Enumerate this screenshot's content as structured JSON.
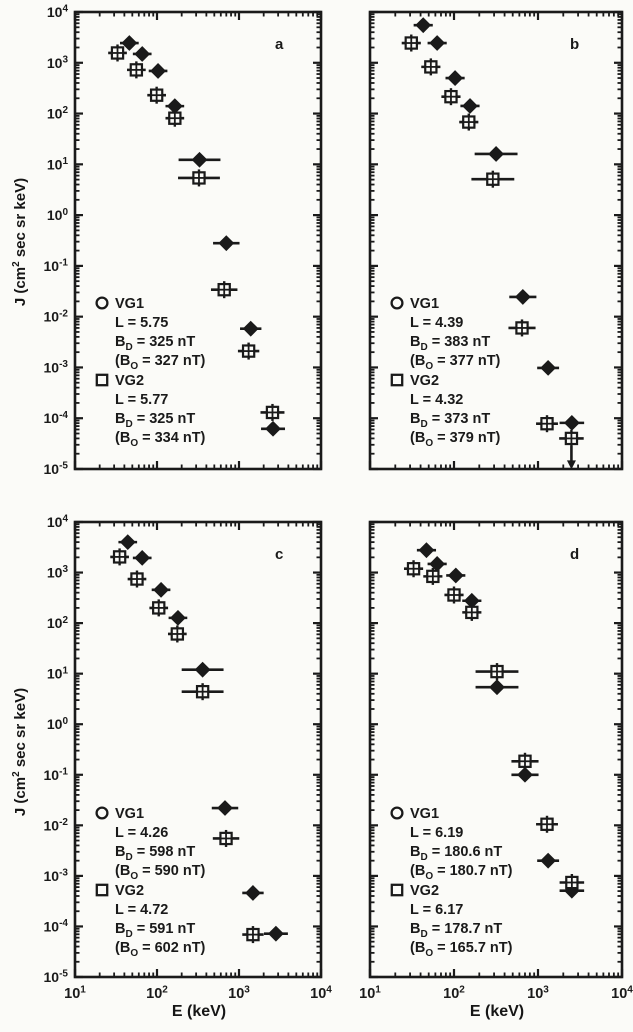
{
  "figure": {
    "xlabel": "E (keV)",
    "ylabel": "J (cm^2 sec sr keV)",
    "x_ticks": [
      "10^1",
      "10^2",
      "10^3",
      "10^4"
    ],
    "y_ticks": [
      "10^4",
      "10^3",
      "10^2",
      "10^1",
      "10^0",
      "10^-1",
      "10^-2",
      "10^-3",
      "10^-4",
      "10^-5"
    ],
    "ink_color": "#1a1a1a",
    "bg_color": "#fbfbf8"
  },
  "chart_data": [
    {
      "type": "scatter",
      "panel_label": "a",
      "xlabel": "E (keV)",
      "ylabel": "J (cm^2 sec sr keV)",
      "xlim_log10": [
        1,
        4
      ],
      "ylim_log10": [
        -5,
        4
      ],
      "grid": false,
      "legend": {
        "vg1": {
          "symbol": "circle",
          "label": "VG1",
          "lines": [
            "L = 5.75",
            "B_D = 325 nT",
            "(B_O = 327 nT)"
          ]
        },
        "vg2": {
          "symbol": "square",
          "label": "VG2",
          "lines": [
            "L = 5.77",
            "B_D = 325 nT",
            "(B_O = 334 nT)"
          ]
        }
      },
      "series": [
        {
          "name": "VG1",
          "marker": "filled-diamond",
          "points_E_J_Eerr": [
            [
              46,
              2450,
              1.3
            ],
            [
              66,
              1490,
              1.3
            ],
            [
              103,
              690,
              1.3
            ],
            [
              165,
              140,
              1.3
            ],
            [
              330,
              12.3,
              1.8
            ],
            [
              700,
              0.28,
              1.45
            ],
            [
              1390,
              0.0058,
              1.35
            ],
            [
              2600,
              6.2e-05,
              1.4
            ]
          ]
        },
        {
          "name": "VG2",
          "marker": "crossed-square",
          "points_E_J_Eerr": [
            [
              33,
              1560,
              1.3
            ],
            [
              56,
              725,
              1.3
            ],
            [
              99,
              230,
              1.3
            ],
            [
              165,
              81,
              1.3
            ],
            [
              325,
              5.4,
              1.8
            ],
            [
              660,
              0.034,
              1.45
            ],
            [
              1310,
              0.0021,
              1.35
            ],
            [
              2560,
              0.00013,
              1.4
            ]
          ]
        }
      ]
    },
    {
      "type": "scatter",
      "panel_label": "b",
      "xlabel": "E (keV)",
      "ylabel": "J (cm^2 sec sr keV)",
      "xlim_log10": [
        1,
        4
      ],
      "ylim_log10": [
        -5,
        4
      ],
      "grid": false,
      "legend": {
        "vg1": {
          "symbol": "circle",
          "label": "VG1",
          "lines": [
            "L = 4.39",
            "B_D = 383 nT",
            "(B_O = 377 nT)"
          ]
        },
        "vg2": {
          "symbol": "square",
          "label": "VG2",
          "lines": [
            "L = 4.32",
            "B_D = 373 nT",
            "(B_O = 379 nT)"
          ]
        }
      },
      "series": [
        {
          "name": "VG1",
          "marker": "filled-diamond",
          "points_E_J_Eerr": [
            [
              43,
              5500,
              1.3
            ],
            [
              63,
              2450,
              1.3
            ],
            [
              103,
              500,
              1.3
            ],
            [
              155,
              141,
              1.3
            ],
            [
              317,
              16,
              1.8
            ],
            [
              660,
              0.0245,
              1.45
            ],
            [
              1320,
              0.00098,
              1.35
            ],
            [
              2530,
              8.1e-05,
              1.4
            ]
          ]
        },
        {
          "name": "VG2",
          "marker": "crossed-square",
          "points_E_J_Eerr": [
            [
              31,
              2450,
              1.3
            ],
            [
              53,
              830,
              1.3
            ],
            [
              92,
              215,
              1.3
            ],
            [
              150,
              68,
              1.3
            ],
            [
              290,
              5.1,
              1.8
            ],
            [
              645,
              0.006,
              1.45
            ],
            [
              1280,
              7.8e-05,
              1.35
            ],
            [
              2500,
              4e-05,
              1.4,
              "upper-limit"
            ]
          ]
        }
      ]
    },
    {
      "type": "scatter",
      "panel_label": "c",
      "xlabel": "E (keV)",
      "ylabel": "J (cm^2 sec sr keV)",
      "xlim_log10": [
        1,
        4
      ],
      "ylim_log10": [
        -5,
        4
      ],
      "grid": false,
      "legend": {
        "vg1": {
          "symbol": "circle",
          "label": "VG1",
          "lines": [
            "L = 4.26",
            "B_D = 598 nT",
            "(B_O = 590 nT)"
          ]
        },
        "vg2": {
          "symbol": "square",
          "label": "VG2",
          "lines": [
            "L = 4.72",
            "B_D = 591 nT",
            "(B_O = 602 nT)"
          ]
        }
      },
      "series": [
        {
          "name": "VG1",
          "marker": "filled-diamond",
          "points_E_J_Eerr": [
            [
              44,
              4000,
              1.3
            ],
            [
              66,
              1950,
              1.3
            ],
            [
              112,
              455,
              1.3
            ],
            [
              180,
              127,
              1.3
            ],
            [
              360,
              12,
              1.8
            ],
            [
              675,
              0.022,
              1.45
            ],
            [
              1480,
              0.00046,
              1.35
            ],
            [
              2820,
              7.2e-05,
              1.4
            ]
          ]
        },
        {
          "name": "VG2",
          "marker": "crossed-square",
          "points_E_J_Eerr": [
            [
              35,
              2040,
              1.3
            ],
            [
              57,
              745,
              1.3
            ],
            [
              105,
              200,
              1.3
            ],
            [
              177,
              61,
              1.3
            ],
            [
              360,
              4.4,
              1.8
            ],
            [
              695,
              0.0055,
              1.45
            ],
            [
              1480,
              6.9e-05,
              1.35
            ]
          ]
        }
      ]
    },
    {
      "type": "scatter",
      "panel_label": "d",
      "xlabel": "E (keV)",
      "ylabel": "J (cm^2 sec sr keV)",
      "xlim_log10": [
        1,
        4
      ],
      "ylim_log10": [
        -5,
        4
      ],
      "grid": false,
      "legend": {
        "vg1": {
          "symbol": "circle",
          "label": "VG1",
          "lines": [
            "L = 6.19",
            "B_D = 180.6 nT",
            "(B_O = 180.7 nT)"
          ]
        },
        "vg2": {
          "symbol": "square",
          "label": "VG2",
          "lines": [
            "L = 6.17",
            "B_D = 178.7 nT",
            "(B_O = 165.7 nT)"
          ]
        }
      },
      "series": [
        {
          "name": "VG1",
          "marker": "filled-diamond",
          "points_E_J_Eerr": [
            [
              47,
              2770,
              1.3
            ],
            [
              63,
              1480,
              1.3
            ],
            [
              105,
              875,
              1.3
            ],
            [
              163,
              277,
              1.3
            ],
            [
              325,
              5.4,
              1.8
            ],
            [
              700,
              0.1,
              1.45
            ],
            [
              1320,
              0.002,
              1.35
            ],
            [
              2530,
              0.00051,
              1.4
            ]
          ]
        },
        {
          "name": "VG2",
          "marker": "crossed-square",
          "points_E_J_Eerr": [
            [
              33,
              1190,
              1.3
            ],
            [
              56,
              840,
              1.3
            ],
            [
              100,
              360,
              1.3
            ],
            [
              163,
              163,
              1.3
            ],
            [
              325,
              11,
              1.8
            ],
            [
              700,
              0.185,
              1.45
            ],
            [
              1280,
              0.0105,
              1.35
            ],
            [
              2530,
              0.00074,
              1.4
            ]
          ]
        }
      ]
    }
  ]
}
